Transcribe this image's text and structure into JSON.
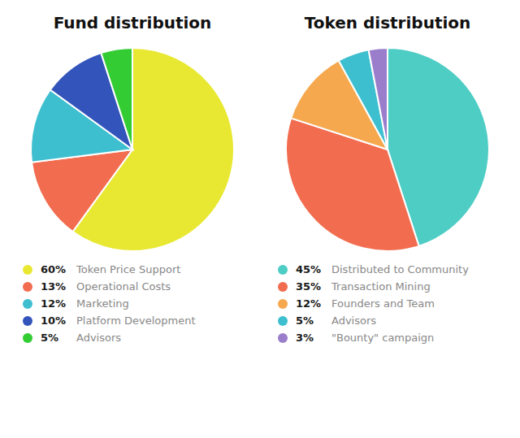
{
  "chart_data": [
    {
      "type": "pie",
      "title": "Fund distribution",
      "categories": [
        "Token Price Support",
        "Operational Costs",
        "Marketing",
        "Platform Development",
        "Advisors"
      ],
      "values": [
        60,
        13,
        12,
        10,
        5
      ],
      "value_labels": [
        "60%",
        "13%",
        "12%",
        "10%",
        "5%"
      ],
      "colors": [
        "#e8e832",
        "#f26c4f",
        "#3dbfcf",
        "#3355bb",
        "#33cc33"
      ],
      "legend": "bottom"
    },
    {
      "type": "pie",
      "title": "Token distribution",
      "categories": [
        "Distributed to Community",
        "Transaction Mining",
        "Founders and Team",
        "Advisors",
        "\"Bounty\" campaign"
      ],
      "values": [
        45,
        35,
        12,
        5,
        3
      ],
      "value_labels": [
        "45%",
        "35%",
        "12%",
        "5%",
        "3%"
      ],
      "colors": [
        "#4ecdc4",
        "#f26c4f",
        "#f5a84e",
        "#3dbfcf",
        "#9b7ecb"
      ],
      "legend": "bottom"
    }
  ]
}
